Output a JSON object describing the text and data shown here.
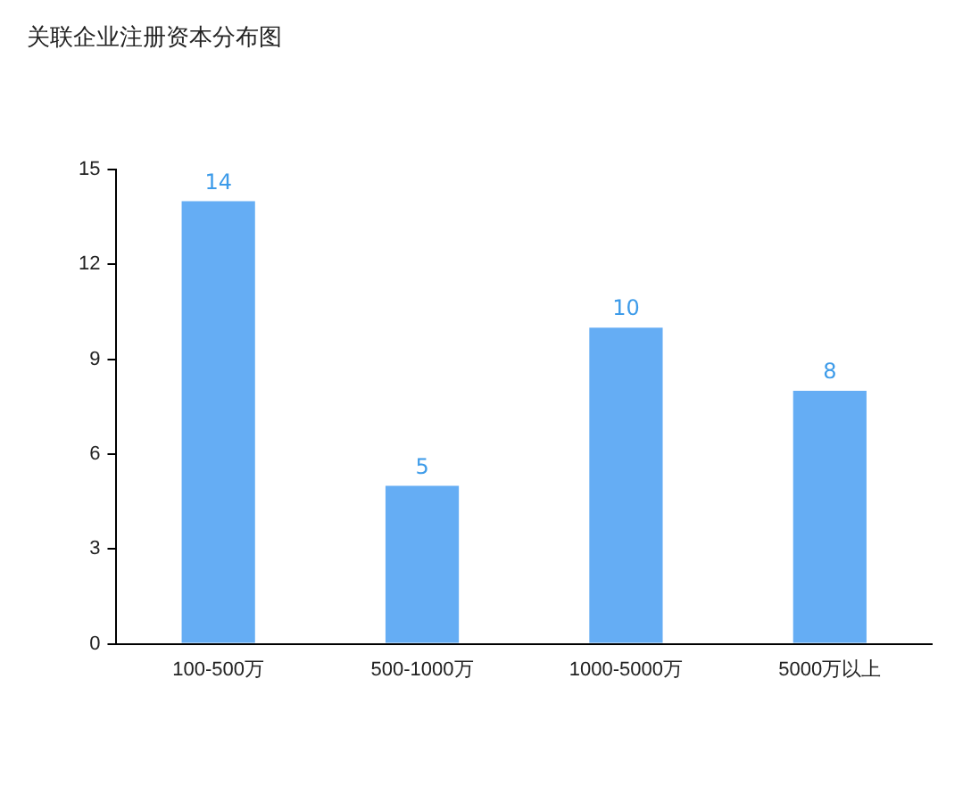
{
  "chart_data": {
    "type": "bar",
    "title": "关联企业注册资本分布图",
    "categories": [
      "100-500万",
      "500-1000万",
      "1000-5000万",
      "5000万以上"
    ],
    "values": [
      14,
      5,
      10,
      8
    ],
    "color": "#65adf4",
    "ylim": [
      0,
      15
    ],
    "yticks": [
      0,
      3,
      6,
      9,
      12,
      15
    ],
    "grid": false,
    "data_labels": true
  }
}
